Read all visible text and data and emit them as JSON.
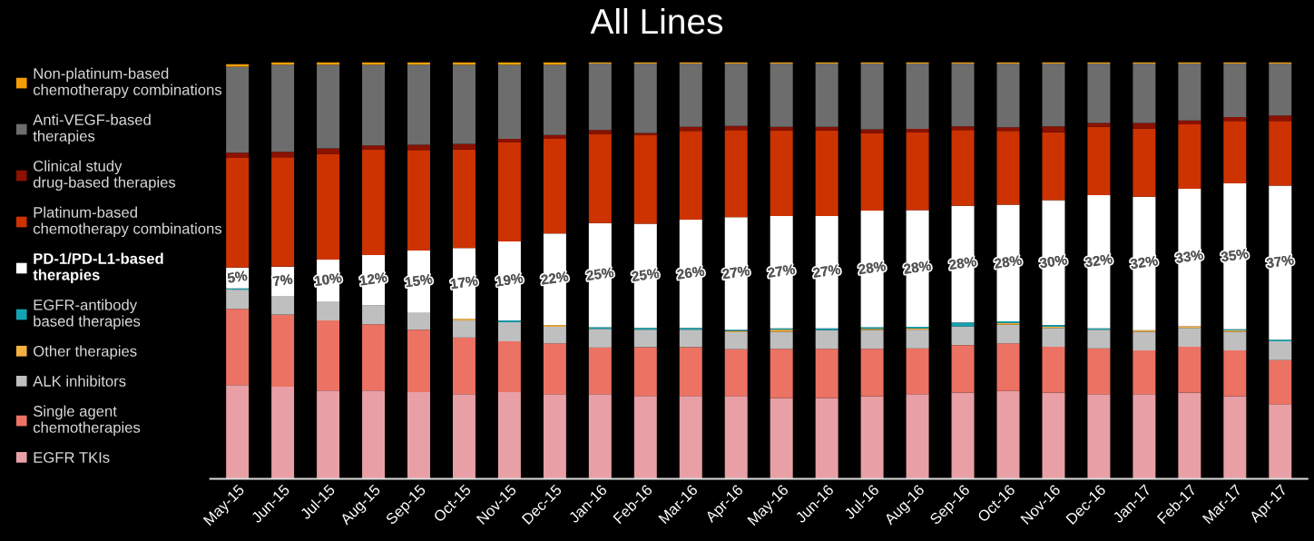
{
  "chart_data": {
    "type": "bar",
    "title": "All Lines",
    "stacked": true,
    "legend": "left",
    "tick_labels": "x",
    "grid": false,
    "ylim": [
      0,
      100
    ],
    "categories": [
      "May-15",
      "Jun-15",
      "Jul-15",
      "Aug-15",
      "Sep-15",
      "Oct-15",
      "Nov-15",
      "Dec-15",
      "Jan-16",
      "Feb-16",
      "Mar-16",
      "Apr-16",
      "May-16",
      "Jun-16",
      "Jul-16",
      "Aug-16",
      "Sep-16",
      "Oct-16",
      "Nov-16",
      "Dec-16",
      "Jan-17",
      "Feb-17",
      "Mar-17",
      "Apr-17"
    ],
    "series": [
      {
        "name": "EGFR TKIs",
        "color": "#e8a0a6",
        "values": [
          22.5,
          22.1,
          21.2,
          21.2,
          20.8,
          20.3,
          20.8,
          20.3,
          20.3,
          19.9,
          19.9,
          19.9,
          19.4,
          19.4,
          19.8,
          20.3,
          20.7,
          21.1,
          20.7,
          20.3,
          20.3,
          20.7,
          19.8,
          17.9
        ]
      },
      {
        "name": "Single agent chemotherapies",
        "color": "#ec7263",
        "values": [
          18.3,
          17.3,
          16.8,
          15.9,
          15.0,
          13.6,
          12.2,
          12.2,
          11.2,
          11.7,
          11.7,
          11.2,
          11.8,
          11.8,
          11.4,
          11.0,
          11.4,
          11.4,
          11.0,
          11.0,
          10.5,
          11.0,
          11.0,
          10.6
        ]
      },
      {
        "name": "ALK inhibitors",
        "color": "#bfbfbf",
        "values": [
          4.6,
          4.5,
          4.6,
          4.6,
          4.0,
          4.1,
          4.6,
          4.0,
          4.5,
          4.2,
          4.2,
          4.1,
          4.1,
          4.5,
          4.5,
          4.5,
          4.5,
          4.5,
          4.5,
          4.5,
          4.5,
          4.5,
          4.5,
          4.5
        ]
      },
      {
        "name": "Other therapies",
        "color": "#f5b041",
        "values": [
          0,
          0,
          0,
          0,
          0,
          0.4,
          0,
          0.4,
          0,
          0,
          0,
          0.3,
          0.5,
          0,
          0.3,
          0.3,
          0,
          0.4,
          0.3,
          0,
          0.4,
          0.4,
          0.3,
          0
        ]
      },
      {
        "name": "EGFR-antibody based therapies",
        "color": "#13a3b0",
        "values": [
          0.3,
          0,
          0,
          0,
          0,
          0,
          0.4,
          0,
          0.4,
          0.4,
          0.4,
          0.3,
          0.3,
          0.4,
          0.4,
          0.4,
          0.9,
          0.4,
          0.4,
          0.3,
          0,
          0,
          0.3,
          0.4
        ]
      },
      {
        "name": "PD-1/PD-L1-based therapies",
        "color": "#ffffff",
        "values": [
          5,
          7,
          10,
          12,
          15,
          17,
          19,
          22,
          25,
          25,
          26,
          27,
          27,
          27,
          28,
          28,
          28,
          28,
          30,
          32,
          32,
          33,
          35,
          37
        ],
        "value_labels": [
          "5%",
          "7%",
          "10%",
          "12%",
          "15%",
          "17%",
          "19%",
          "22%",
          "25%",
          "25%",
          "26%",
          "27%",
          "27%",
          "27%",
          "28%",
          "28%",
          "28%",
          "28%",
          "30%",
          "32%",
          "32%",
          "33%",
          "35%",
          "37%"
        ]
      },
      {
        "name": "Platinum-based chemotherapy combinations",
        "color": "#cc3300",
        "values": [
          26.3,
          26.3,
          25.4,
          25.4,
          24.1,
          23.7,
          23.7,
          22.7,
          21.4,
          21.4,
          21.3,
          20.9,
          20.5,
          20.5,
          18.6,
          18.6,
          18.2,
          17.7,
          16.3,
          16.4,
          16.4,
          15.5,
          15.0,
          15.5
        ]
      },
      {
        "name": "Clinical study drug-based therapies",
        "color": "#8b1100",
        "values": [
          1.3,
          1.3,
          1.3,
          0.9,
          1.3,
          1.3,
          0.9,
          0.9,
          0.9,
          0.4,
          1.0,
          1.0,
          0.9,
          0.9,
          0.9,
          0.9,
          0.9,
          0.9,
          1.4,
          0.9,
          1.3,
          0.9,
          0.9,
          1.3
        ]
      },
      {
        "name": "Anti-VEGF-based therapies",
        "color": "#6d6d6d",
        "values": [
          20.6,
          20.9,
          20.1,
          19.4,
          19.2,
          19.0,
          17.8,
          16.9,
          16.0,
          16.7,
          15.2,
          15.0,
          15.2,
          15.2,
          15.8,
          15.7,
          15.1,
          15.3,
          15.1,
          14.3,
          14.3,
          13.7,
          12.9,
          12.5
        ]
      },
      {
        "name": "Non-platinum-based chemotherapy combinations",
        "color": "#f29f05",
        "values": [
          0.6,
          0.6,
          0.6,
          0.6,
          0.6,
          0.6,
          0.6,
          0.6,
          0.3,
          0.3,
          0.3,
          0.3,
          0.3,
          0.3,
          0.3,
          0.3,
          0.3,
          0.3,
          0.3,
          0.3,
          0.3,
          0.3,
          0.3,
          0.3
        ]
      }
    ]
  }
}
